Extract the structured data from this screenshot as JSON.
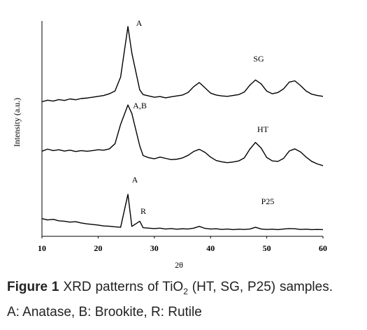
{
  "chart_data": {
    "type": "line",
    "xlabel": "2θ",
    "ylabel": "Intensity (a.u.)",
    "xlim": [
      10,
      60
    ],
    "xticks": [
      10,
      20,
      30,
      40,
      50,
      60
    ],
    "ylim": [
      0,
      100
    ],
    "color": "#000000",
    "x": [
      10,
      11,
      12,
      13,
      14,
      15,
      16,
      17,
      18,
      19,
      20,
      21,
      22,
      23,
      24,
      25.3,
      26,
      27.4,
      28,
      29,
      30,
      31,
      32,
      33,
      34,
      35,
      36,
      37,
      38,
      39,
      40,
      41,
      42,
      43,
      44,
      45,
      46,
      47,
      48,
      49,
      50,
      51,
      52,
      53,
      54,
      55,
      56,
      57,
      58,
      59,
      60
    ],
    "series": [
      {
        "name": "SG",
        "values": [
          62.5,
          63.2,
          62.8,
          63.5,
          63.1,
          63.8,
          63.4,
          64.0,
          64.2,
          64.6,
          65.0,
          65.4,
          66.2,
          67.5,
          74,
          97.4,
          85,
          68,
          65.8,
          65.2,
          64.6,
          64.9,
          64.3,
          64.8,
          65.2,
          65.6,
          66.8,
          69.5,
          71.4,
          69.0,
          66.5,
          65.6,
          65.2,
          65.0,
          65.4,
          65.8,
          67.0,
          70.2,
          72.6,
          70.8,
          67.4,
          66.2,
          66.8,
          68.5,
          71.6,
          72.2,
          70.0,
          67.5,
          66.0,
          65.4,
          65.0
        ]
      },
      {
        "name": "HT",
        "values": [
          39.5,
          40.5,
          39.8,
          40.2,
          39.6,
          40.0,
          39.4,
          39.8,
          39.5,
          39.8,
          40.2,
          40.0,
          40.6,
          43,
          52,
          61,
          57,
          42,
          37.5,
          36.5,
          36.0,
          36.8,
          36.2,
          35.6,
          35.8,
          36.4,
          37.6,
          39.4,
          40.4,
          39.0,
          36.8,
          35.2,
          34.6,
          34.2,
          34.5,
          35.0,
          36.4,
          40.5,
          43.6,
          41.0,
          36.6,
          35.0,
          34.8,
          36.2,
          39.6,
          40.6,
          39.2,
          36.8,
          34.8,
          33.6,
          32.8
        ]
      },
      {
        "name": "P25",
        "values": [
          8.2,
          7.6,
          7.9,
          7.2,
          7.0,
          6.6,
          6.8,
          6.2,
          5.8,
          5.5,
          5.2,
          4.8,
          4.7,
          4.4,
          4.2,
          19.5,
          4.6,
          7.0,
          4.0,
          3.8,
          3.6,
          3.8,
          3.4,
          3.6,
          3.3,
          3.5,
          3.4,
          3.8,
          4.6,
          3.7,
          3.4,
          3.5,
          3.2,
          3.4,
          3.1,
          3.3,
          3.2,
          3.4,
          4.2,
          3.4,
          3.2,
          3.3,
          3.1,
          3.4,
          3.6,
          3.5,
          3.2,
          3.3,
          3.1,
          3.2,
          3.1
        ]
      }
    ],
    "annotations": [
      "A",
      "A,B",
      "A",
      "R"
    ]
  },
  "caption": {
    "label": "Figure 1",
    "text_before": "XRD patterns of TiO",
    "subscript": "2",
    "text_after": " (HT, SG, P25) samples. A: Anatase, B: Brookite, R: Rutile"
  }
}
